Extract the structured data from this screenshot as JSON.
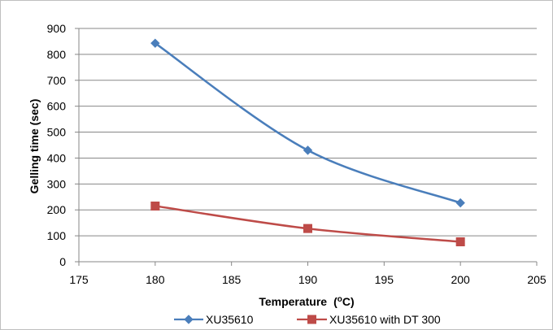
{
  "chart_data": {
    "type": "line",
    "title": "",
    "xlabel": "Temperature",
    "xlabel_unit_prefix": "(",
    "xlabel_unit_superscript": "o",
    "xlabel_unit_suffix": "C)",
    "ylabel": "Gelling time (sec)",
    "xlim": [
      175,
      205
    ],
    "ylim": [
      0,
      900
    ],
    "xticks": [
      175,
      180,
      185,
      190,
      195,
      200,
      205
    ],
    "yticks": [
      0,
      100,
      200,
      300,
      400,
      500,
      600,
      700,
      800,
      900
    ],
    "grid": "horizontal",
    "legend_position": "bottom",
    "series": [
      {
        "name": "XU35610",
        "color": "#4a7ebb",
        "marker": "diamond",
        "smooth": true,
        "x": [
          180,
          190,
          200
        ],
        "y": [
          843,
          430,
          227
        ]
      },
      {
        "name": "XU35610 with DT 300",
        "color": "#be4b48",
        "marker": "square",
        "smooth": true,
        "x": [
          180,
          190,
          200
        ],
        "y": [
          215,
          128,
          77
        ]
      }
    ]
  }
}
